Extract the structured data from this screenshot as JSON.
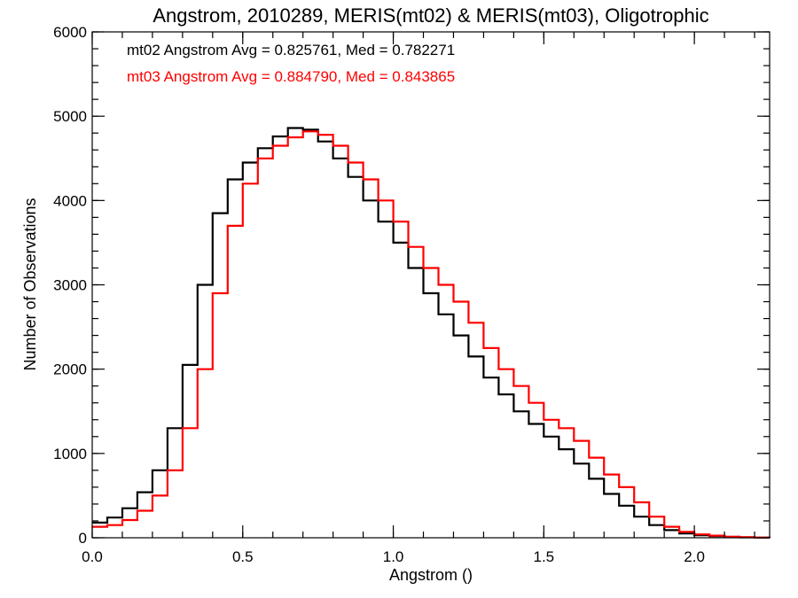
{
  "chart_data": {
    "type": "line",
    "title": "Angstrom, 2010289, MERIS(mt02) & MERIS(mt03), Oligotrophic",
    "xlabel": "Angstrom ()",
    "ylabel": "Number of Observations",
    "xlim": [
      0.0,
      2.25
    ],
    "ylim": [
      0,
      6000
    ],
    "x_ticks": [
      0.0,
      0.5,
      1.0,
      1.5,
      2.0
    ],
    "x_tick_labels": [
      "0.0",
      "0.5",
      "1.0",
      "1.5",
      "2.0"
    ],
    "y_ticks": [
      0,
      1000,
      2000,
      3000,
      4000,
      5000,
      6000
    ],
    "y_tick_labels": [
      "0",
      "1000",
      "2000",
      "3000",
      "4000",
      "5000",
      "6000"
    ],
    "grid": false,
    "legend_position": "top-left",
    "style": "step",
    "annotations": [
      {
        "text": "mt02 Angstrom Avg = 0.825761, Med = 0.782271",
        "color": "#000000"
      },
      {
        "text": "mt03 Angstrom Avg = 0.884790, Med = 0.843865",
        "color": "#ff0000"
      }
    ],
    "series": [
      {
        "color": "#000000",
        "x": [
          0.0,
          0.05,
          0.1,
          0.15,
          0.2,
          0.25,
          0.3,
          0.35,
          0.4,
          0.45,
          0.5,
          0.55,
          0.6,
          0.65,
          0.7,
          0.75,
          0.8,
          0.85,
          0.9,
          0.95,
          1.0,
          1.05,
          1.1,
          1.15,
          1.2,
          1.25,
          1.3,
          1.35,
          1.4,
          1.45,
          1.5,
          1.55,
          1.6,
          1.65,
          1.7,
          1.75,
          1.8,
          1.85,
          1.9,
          1.95,
          2.0,
          2.05,
          2.1,
          2.15,
          2.2,
          2.25
        ],
        "values": [
          180,
          240,
          350,
          540,
          800,
          1300,
          2050,
          3000,
          3850,
          4250,
          4450,
          4620,
          4760,
          4860,
          4840,
          4700,
          4500,
          4280,
          4000,
          3750,
          3500,
          3200,
          2900,
          2650,
          2400,
          2150,
          1900,
          1700,
          1500,
          1350,
          1200,
          1050,
          880,
          700,
          520,
          380,
          250,
          150,
          90,
          50,
          30,
          20,
          10,
          5,
          2,
          0
        ]
      },
      {
        "color": "#ff0000",
        "x": [
          0.0,
          0.05,
          0.1,
          0.15,
          0.2,
          0.25,
          0.3,
          0.35,
          0.4,
          0.45,
          0.5,
          0.55,
          0.6,
          0.65,
          0.7,
          0.75,
          0.8,
          0.85,
          0.9,
          0.95,
          1.0,
          1.05,
          1.1,
          1.15,
          1.2,
          1.25,
          1.3,
          1.35,
          1.4,
          1.45,
          1.5,
          1.55,
          1.6,
          1.65,
          1.7,
          1.75,
          1.8,
          1.85,
          1.9,
          1.95,
          2.0,
          2.05,
          2.1,
          2.15,
          2.2,
          2.25
        ],
        "values": [
          130,
          150,
          210,
          320,
          500,
          800,
          1300,
          2000,
          2900,
          3700,
          4200,
          4500,
          4650,
          4750,
          4820,
          4780,
          4650,
          4450,
          4250,
          4000,
          3750,
          3450,
          3200,
          3000,
          2800,
          2550,
          2250,
          2000,
          1800,
          1600,
          1400,
          1300,
          1150,
          950,
          750,
          600,
          420,
          250,
          130,
          70,
          40,
          25,
          12,
          6,
          2,
          0
        ]
      }
    ]
  }
}
